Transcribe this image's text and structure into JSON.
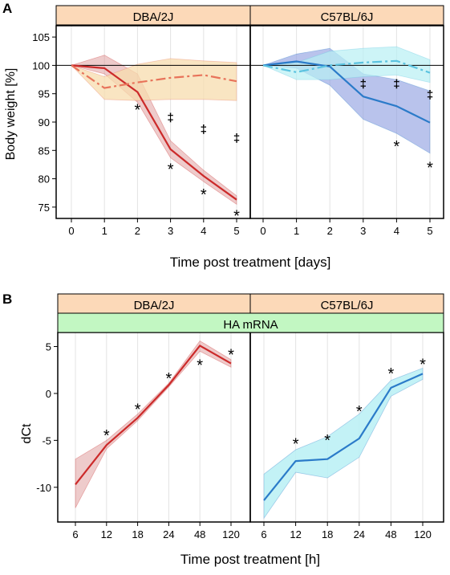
{
  "colors": {
    "strip_bg": "#fcd9b8",
    "strip2_bg": "#c2f7c2",
    "dba_line": "#cc2a2a",
    "dba_fill": "#d98c8c",
    "dba_ctrl_line": "#e8735a",
    "dba_ctrl_fill": "#f7dcae",
    "b6_line": "#2b7bc9",
    "b6_fill": "#8a9be0",
    "b6_ctrl_line": "#5bc3e0",
    "b6_ctrl_fill": "#b8f0f4",
    "hline": "#000000",
    "grid": "#e3e3e3"
  },
  "panel_letters": {
    "a": "A",
    "b": "B"
  },
  "chart_data": [
    {
      "type": "line",
      "panel": "A",
      "xlabel": "Time post treatment [days]",
      "ylabel": "Body weight [%]",
      "x": [
        0,
        1,
        2,
        3,
        4,
        5
      ],
      "x_tick_labels": [
        "0",
        "1",
        "2",
        "3",
        "4",
        "5"
      ],
      "ylim": [
        73,
        107
      ],
      "y_ticks": [
        75,
        80,
        85,
        90,
        95,
        100,
        105
      ],
      "reference_line": 100,
      "grid": "vertical",
      "panels": [
        {
          "strip": "DBA/2J",
          "series": [
            {
              "style": "solid",
              "color_key": "dba",
              "values": [
                100,
                99.5,
                95.3,
                85.2,
                80.5,
                76.3
              ],
              "lower": [
                100,
                98.5,
                93.5,
                83.7,
                79.5,
                75.5
              ],
              "upper": [
                100,
                101.8,
                98.5,
                86.7,
                81.5,
                77.0
              ]
            },
            {
              "style": "dashed",
              "color_key": "dba_ctrl",
              "values": [
                100,
                96.0,
                97.0,
                97.8,
                98.3,
                97.2
              ],
              "lower": [
                100,
                94.0,
                93.8,
                94.0,
                94.0,
                93.8
              ],
              "upper": [
                100,
                98.0,
                100.2,
                101.2,
                100.8,
                100.5
              ]
            }
          ],
          "annotations": [
            {
              "x": 2,
              "y": 92.5,
              "text": "*"
            },
            {
              "x": 3,
              "y": 82.0,
              "text": "*"
            },
            {
              "x": 4,
              "y": 77.5,
              "text": "*"
            },
            {
              "x": 5,
              "y": 73.8,
              "text": "*"
            },
            {
              "x": 3,
              "y": 90.8,
              "text": "‡"
            },
            {
              "x": 4,
              "y": 88.7,
              "text": "‡"
            },
            {
              "x": 5,
              "y": 87.2,
              "text": "‡"
            }
          ]
        },
        {
          "strip": "C57BL/6J",
          "series": [
            {
              "style": "solid",
              "color_key": "b6",
              "values": [
                100,
                100.7,
                99.8,
                94.5,
                92.8,
                89.9
              ],
              "lower": [
                100,
                99.5,
                96.5,
                90.5,
                88.0,
                84.5
              ],
              "upper": [
                100,
                102.0,
                103.0,
                98.5,
                97.5,
                95.5
              ]
            },
            {
              "style": "dashed",
              "color_key": "b6_ctrl",
              "values": [
                100,
                98.8,
                100.0,
                100.5,
                100.8,
                98.7
              ],
              "lower": [
                100,
                97.5,
                97.5,
                98.0,
                98.3,
                97.0
              ],
              "upper": [
                100,
                100.5,
                102.5,
                103.0,
                103.3,
                101.0
              ]
            }
          ],
          "annotations": [
            {
              "x": 3,
              "y": 96.7,
              "text": "‡"
            },
            {
              "x": 4,
              "y": 96.7,
              "text": "‡"
            },
            {
              "x": 5,
              "y": 94.8,
              "text": "‡"
            },
            {
              "x": 4,
              "y": 86.0,
              "text": "*"
            },
            {
              "x": 5,
              "y": 82.3,
              "text": "*"
            }
          ]
        }
      ]
    },
    {
      "type": "line",
      "panel": "B",
      "xlabel": "Time post treatment [h]",
      "ylabel": "dCt",
      "strip2": "HA mRNA",
      "x": [
        "6",
        "12",
        "18",
        "24",
        "48",
        "120"
      ],
      "ylim": [
        -13.7,
        6.5
      ],
      "y_ticks": [
        -10,
        -5,
        0,
        5
      ],
      "grid": "vertical",
      "panels": [
        {
          "strip": "DBA/2J",
          "series": [
            {
              "style": "solid",
              "color_key": "dba",
              "values": [
                -9.7,
                -5.5,
                -2.6,
                0.9,
                5.1,
                3.2
              ],
              "lower": [
                -12.2,
                -5.9,
                -2.9,
                0.7,
                4.5,
                2.8
              ],
              "upper": [
                -7.0,
                -5.0,
                -2.2,
                1.1,
                5.6,
                3.6
              ]
            }
          ],
          "annotations": [
            {
              "x": 1,
              "y": -4.3,
              "text": "*"
            },
            {
              "x": 2,
              "y": -1.5,
              "text": "*"
            },
            {
              "x": 3,
              "y": 1.8,
              "text": "*"
            },
            {
              "x": 4,
              "y": 3.2,
              "text": "*"
            },
            {
              "x": 5,
              "y": 4.3,
              "text": "*"
            }
          ]
        },
        {
          "strip": "C57BL/6J",
          "series": [
            {
              "style": "solid",
              "color_key": "b6cyan",
              "values": [
                -11.4,
                -7.2,
                -7.0,
                -4.8,
                0.6,
                2.1
              ],
              "lower": [
                -13.3,
                -8.4,
                -9.0,
                -6.8,
                -0.3,
                1.5
              ],
              "upper": [
                -8.6,
                -6.0,
                -4.6,
                -2.2,
                1.4,
                2.7
              ]
            }
          ],
          "annotations": [
            {
              "x": 1,
              "y": -5.2,
              "text": "*"
            },
            {
              "x": 2,
              "y": -4.8,
              "text": "*"
            },
            {
              "x": 3,
              "y": -1.7,
              "text": "*"
            },
            {
              "x": 4,
              "y": 2.3,
              "text": "*"
            },
            {
              "x": 5,
              "y": 3.3,
              "text": "*"
            }
          ]
        }
      ]
    }
  ]
}
